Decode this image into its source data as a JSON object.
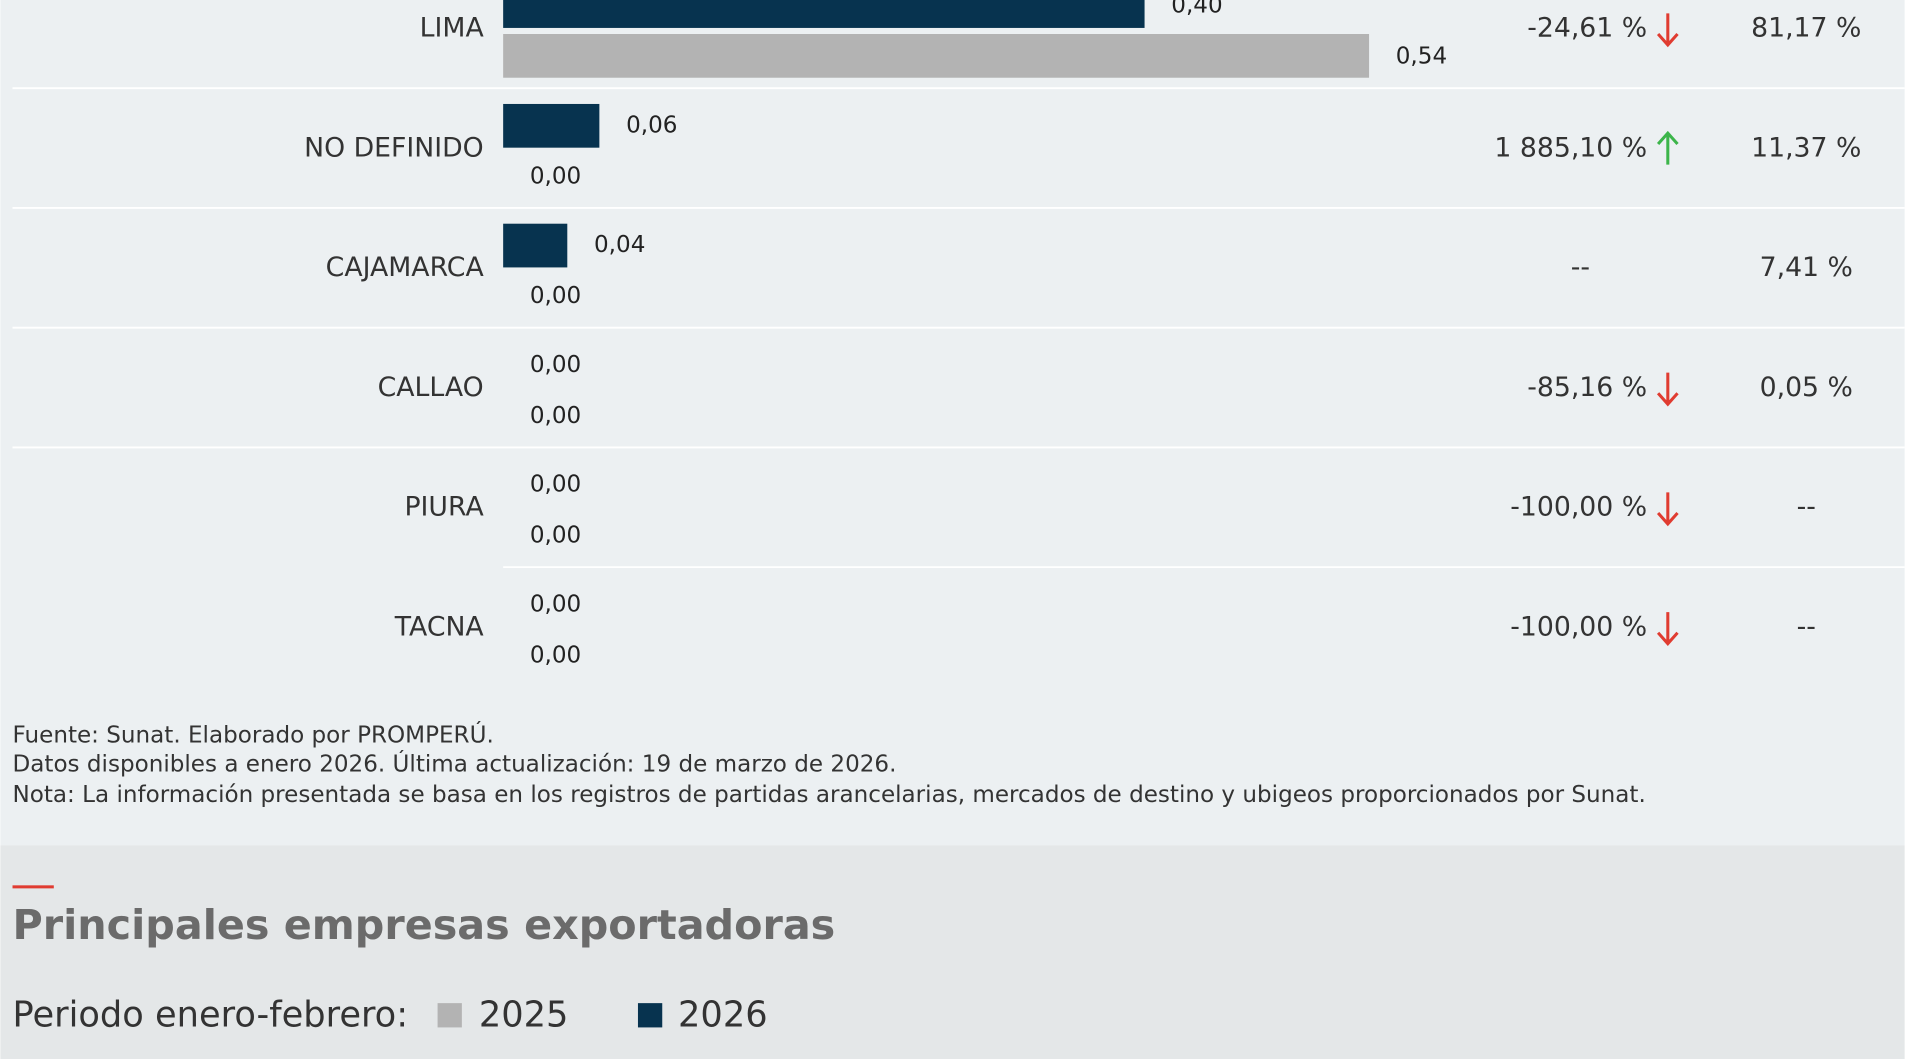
{
  "rows": [
    {
      "region": "LIMA",
      "value_2026": 0.4,
      "label_2026": "0,40",
      "value_2025": 0.54,
      "label_2025": "0,54",
      "variation": "-24,61 %",
      "trend": "down",
      "share": "81,17 %"
    },
    {
      "region": "NO DEFINIDO",
      "value_2026": 0.06,
      "label_2026": "0,06",
      "value_2025": 0,
      "label_2025": "0,00",
      "variation": "1 885,10 %",
      "trend": "up",
      "share": "11,37 %"
    },
    {
      "region": "CAJAMARCA",
      "value_2026": 0.04,
      "label_2026": "0,04",
      "value_2025": 0,
      "label_2025": "0,00",
      "variation": "--",
      "share": "7,41 %"
    },
    {
      "region": "CALLAO",
      "value_2026": 0,
      "label_2026": "0,00",
      "value_2025": 0,
      "label_2025": "0,00",
      "variation": "-85,16 %",
      "trend": "down",
      "share": "0,05 %"
    },
    {
      "region": "PIURA",
      "value_2026": 0,
      "label_2026": "0,00",
      "value_2025": 0,
      "label_2025": "0,00",
      "variation": "-100,00 %",
      "trend": "down",
      "share": "--"
    },
    {
      "region": "TACNA",
      "value_2026": 0,
      "label_2026": "0,00",
      "value_2025": 0,
      "label_2025": "0,00",
      "variation": "-100,00 %",
      "trend": "down",
      "share": "--"
    }
  ],
  "colors": {
    "2026": "#07334f",
    "2025": "#b3b3b3"
  },
  "notes": [
    "Fuente: Sunat. Elaborado por PROMPERÚ.",
    "Datos disponibles a enero 2026. Última actualización: 19 de marzo de 2026.",
    "Nota: La información presentada se basa en los registros de partidas arancelarias, mercados de destino y ubigeos proporcionados por Sunat."
  ],
  "section": {
    "title": "Principales empresas exportadoras",
    "period_label": "Periodo enero-febrero:",
    "legend": [
      "2025",
      "2026"
    ]
  }
}
